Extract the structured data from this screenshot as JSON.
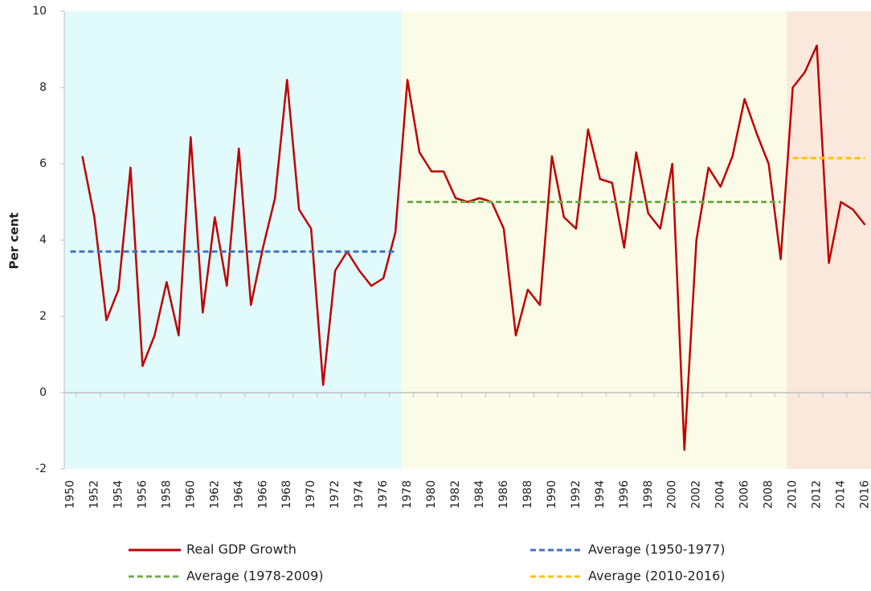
{
  "chart_data": {
    "type": "line",
    "y_label": "Per cent",
    "categories": [
      "1950",
      null,
      "1952",
      null,
      "1954",
      null,
      "1956",
      null,
      "1958",
      null,
      "1960",
      null,
      "1962",
      null,
      "1964",
      null,
      "1966",
      null,
      "1968",
      null,
      "1970",
      null,
      "1972",
      null,
      "1974",
      null,
      "1976",
      null,
      "1978",
      null,
      "1980",
      null,
      "1982",
      null,
      "1984",
      null,
      "1986",
      null,
      "1988",
      null,
      "1990",
      null,
      "1992",
      null,
      "1994",
      null,
      "1996",
      null,
      "1998",
      null,
      "2000",
      null,
      "2002",
      null,
      "2004",
      null,
      "2006",
      null,
      "2008",
      null,
      "2010",
      null,
      "2012",
      null,
      "2014",
      null,
      "2016"
    ],
    "series": [
      {
        "name": "Real GDP Growth",
        "color": "#c00000",
        "dashed": false,
        "values": [
          null,
          6.2,
          4.6,
          1.9,
          2.7,
          5.9,
          0.7,
          1.5,
          2.9,
          1.5,
          6.7,
          2.1,
          4.6,
          2.8,
          6.4,
          2.3,
          3.8,
          5.1,
          8.2,
          4.8,
          4.3,
          0.2,
          3.2,
          3.7,
          3.2,
          2.8,
          3.0,
          4.2,
          8.2,
          6.3,
          5.8,
          5.8,
          5.1,
          5.0,
          5.1,
          5.0,
          4.3,
          1.5,
          2.7,
          2.3,
          6.2,
          4.6,
          4.3,
          6.9,
          5.6,
          5.5,
          3.8,
          6.3,
          4.7,
          4.3,
          6.0,
          -1.5,
          4.0,
          5.9,
          5.4,
          6.2,
          7.7,
          6.8,
          6.0,
          3.5,
          8.0,
          8.4,
          9.1,
          3.4,
          5.0,
          4.8,
          4.4
        ]
      },
      {
        "name": "Average (1950-1977)",
        "color": "#4472c4",
        "dashed": true,
        "band_color": "#e1fbfd",
        "values": [
          3.7,
          3.7,
          3.7,
          3.7,
          3.7,
          3.7,
          3.7,
          3.7,
          3.7,
          3.7,
          3.7,
          3.7,
          3.7,
          3.7,
          3.7,
          3.7,
          3.7,
          3.7,
          3.7,
          3.7,
          3.7,
          3.7,
          3.7,
          3.7,
          3.7,
          3.7,
          3.7,
          3.7,
          null,
          null,
          null,
          null,
          null,
          null,
          null,
          null,
          null,
          null,
          null,
          null,
          null,
          null,
          null,
          null,
          null,
          null,
          null,
          null,
          null,
          null,
          null,
          null,
          null,
          null,
          null,
          null,
          null,
          null,
          null,
          null,
          null,
          null,
          null,
          null,
          null,
          null,
          null
        ]
      },
      {
        "name": "Average (1978-2009)",
        "color": "#70ad47",
        "dashed": true,
        "band_color": "#fbfce7",
        "values": [
          null,
          null,
          null,
          null,
          null,
          null,
          null,
          null,
          null,
          null,
          null,
          null,
          null,
          null,
          null,
          null,
          null,
          null,
          null,
          null,
          null,
          null,
          null,
          null,
          null,
          null,
          null,
          null,
          5.0,
          5.0,
          5.0,
          5.0,
          5.0,
          5.0,
          5.0,
          5.0,
          5.0,
          5.0,
          5.0,
          5.0,
          5.0,
          5.0,
          5.0,
          5.0,
          5.0,
          5.0,
          5.0,
          5.0,
          5.0,
          5.0,
          5.0,
          5.0,
          5.0,
          5.0,
          5.0,
          5.0,
          5.0,
          5.0,
          5.0,
          5.0,
          null,
          null,
          null,
          null,
          null,
          null,
          null
        ]
      },
      {
        "name": "Average (2010-2016)",
        "color": "#ffc000",
        "dashed": true,
        "band_color": "#fbe8dd",
        "values": [
          null,
          null,
          null,
          null,
          null,
          null,
          null,
          null,
          null,
          null,
          null,
          null,
          null,
          null,
          null,
          null,
          null,
          null,
          null,
          null,
          null,
          null,
          null,
          null,
          null,
          null,
          null,
          null,
          null,
          null,
          null,
          null,
          null,
          null,
          null,
          null,
          null,
          null,
          null,
          null,
          null,
          null,
          null,
          null,
          null,
          null,
          null,
          null,
          null,
          null,
          null,
          null,
          null,
          null,
          null,
          null,
          null,
          null,
          null,
          null,
          6.15,
          6.15,
          6.15,
          6.15,
          6.15,
          6.15,
          6.15
        ]
      }
    ],
    "ylim": [
      -2,
      10
    ],
    "yticks": [
      -2,
      0,
      2,
      4,
      6,
      8,
      10
    ],
    "grid": false,
    "legend": "bottom"
  }
}
